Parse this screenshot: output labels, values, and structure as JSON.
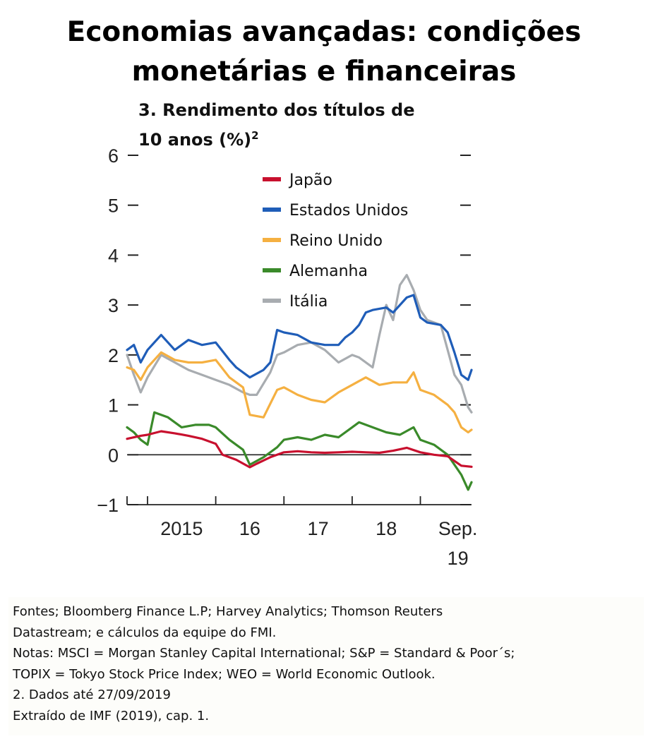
{
  "title": {
    "line1": "Economias avançadas: condições",
    "line2": "monetárias e financeiras"
  },
  "subtitle": {
    "line1": "3. Rendimento dos títulos de",
    "line2": "10 anos (%)",
    "superscript": "2"
  },
  "notes": [
    "Fontes; Bloomberg Finance L.P; Harvey Analytics; Thomson Reuters",
    "Datastream; e cálculos da equipe do FMI.",
    "Notas: MSCI = Morgan Stanley Capital International; S&P = Standard & Poor´s;",
    "TOPIX = Tokyo Stock Price Index; WEO = World Economic Outlook.",
    "2. Dados até 27/09/2019",
    "Extraído de IMF (2019), cap. 1."
  ],
  "chart_data": {
    "type": "line",
    "ylim": [
      -1,
      6
    ],
    "yticks": [
      "−1",
      "0",
      "1",
      "2",
      "3",
      "4",
      "5",
      "6"
    ],
    "xlim": [
      2014.7,
      2019.75
    ],
    "xtick_labels": [
      {
        "label": "2015",
        "x": 2015.5
      },
      {
        "label": "16",
        "x": 2016.5
      },
      {
        "label": "17",
        "x": 2017.5
      },
      {
        "label": "18",
        "x": 2018.5
      },
      {
        "label": "Sep.",
        "label2": "19",
        "x": 2019.55
      }
    ],
    "x_boundaries": [
      2015,
      2016,
      2017,
      2018,
      2019
    ],
    "zero_line": true,
    "legend_position": "top-center",
    "series": [
      {
        "name": "Japão",
        "color": "#c8102e",
        "x": [
          2014.7,
          2014.9,
          2015.0,
          2015.2,
          2015.4,
          2015.6,
          2015.8,
          2016.0,
          2016.1,
          2016.3,
          2016.5,
          2016.6,
          2016.8,
          2017.0,
          2017.2,
          2017.4,
          2017.6,
          2017.8,
          2018.0,
          2018.2,
          2018.4,
          2018.6,
          2018.8,
          2019.0,
          2019.2,
          2019.4,
          2019.6,
          2019.75
        ],
        "values": [
          0.32,
          0.38,
          0.4,
          0.47,
          0.43,
          0.38,
          0.32,
          0.22,
          0.0,
          -0.1,
          -0.25,
          -0.18,
          -0.05,
          0.05,
          0.07,
          0.05,
          0.04,
          0.05,
          0.06,
          0.05,
          0.04,
          0.08,
          0.14,
          0.05,
          0.0,
          -0.03,
          -0.22,
          -0.24
        ]
      },
      {
        "name": "Estados Unidos",
        "color": "#1f5db8",
        "x": [
          2014.7,
          2014.8,
          2014.9,
          2015.0,
          2015.2,
          2015.4,
          2015.6,
          2015.8,
          2016.0,
          2016.2,
          2016.3,
          2016.5,
          2016.7,
          2016.8,
          2016.9,
          2017.0,
          2017.2,
          2017.4,
          2017.6,
          2017.8,
          2017.9,
          2018.0,
          2018.1,
          2018.2,
          2018.3,
          2018.5,
          2018.6,
          2018.8,
          2018.9,
          2019.0,
          2019.1,
          2019.3,
          2019.4,
          2019.5,
          2019.6,
          2019.7,
          2019.75
        ],
        "values": [
          2.1,
          2.2,
          1.85,
          2.1,
          2.4,
          2.1,
          2.3,
          2.2,
          2.25,
          1.9,
          1.75,
          1.55,
          1.7,
          1.85,
          2.5,
          2.45,
          2.4,
          2.25,
          2.2,
          2.2,
          2.35,
          2.45,
          2.6,
          2.85,
          2.9,
          2.95,
          2.85,
          3.15,
          3.2,
          2.75,
          2.65,
          2.6,
          2.45,
          2.05,
          1.6,
          1.5,
          1.7
        ]
      },
      {
        "name": "Reino Unido",
        "color": "#f5b041",
        "x": [
          2014.7,
          2014.8,
          2014.9,
          2015.0,
          2015.2,
          2015.4,
          2015.6,
          2015.8,
          2016.0,
          2016.2,
          2016.4,
          2016.5,
          2016.7,
          2016.9,
          2017.0,
          2017.2,
          2017.4,
          2017.6,
          2017.8,
          2018.0,
          2018.2,
          2018.4,
          2018.6,
          2018.8,
          2018.9,
          2019.0,
          2019.2,
          2019.4,
          2019.5,
          2019.6,
          2019.7,
          2019.75
        ],
        "values": [
          1.75,
          1.7,
          1.5,
          1.75,
          2.05,
          1.9,
          1.85,
          1.85,
          1.9,
          1.55,
          1.35,
          0.8,
          0.75,
          1.3,
          1.35,
          1.2,
          1.1,
          1.05,
          1.25,
          1.4,
          1.55,
          1.4,
          1.45,
          1.45,
          1.65,
          1.3,
          1.2,
          1.0,
          0.85,
          0.55,
          0.45,
          0.5
        ]
      },
      {
        "name": "Alemanha",
        "color": "#3a8a2a",
        "x": [
          2014.7,
          2014.8,
          2014.9,
          2015.0,
          2015.1,
          2015.3,
          2015.5,
          2015.7,
          2015.9,
          2016.0,
          2016.2,
          2016.4,
          2016.5,
          2016.7,
          2016.9,
          2017.0,
          2017.2,
          2017.4,
          2017.6,
          2017.8,
          2018.0,
          2018.1,
          2018.3,
          2018.5,
          2018.7,
          2018.9,
          2019.0,
          2019.2,
          2019.4,
          2019.6,
          2019.7,
          2019.75
        ],
        "values": [
          0.55,
          0.45,
          0.3,
          0.2,
          0.85,
          0.75,
          0.55,
          0.6,
          0.6,
          0.55,
          0.3,
          0.1,
          -0.2,
          -0.05,
          0.15,
          0.3,
          0.35,
          0.3,
          0.4,
          0.35,
          0.55,
          0.65,
          0.55,
          0.45,
          0.4,
          0.55,
          0.3,
          0.2,
          0.0,
          -0.4,
          -0.7,
          -0.55
        ]
      },
      {
        "name": "Itália",
        "color": "#a8acb0",
        "x": [
          2014.7,
          2014.8,
          2014.9,
          2015.0,
          2015.2,
          2015.4,
          2015.6,
          2015.8,
          2016.0,
          2016.2,
          2016.4,
          2016.5,
          2016.6,
          2016.8,
          2016.9,
          2017.0,
          2017.2,
          2017.4,
          2017.6,
          2017.8,
          2018.0,
          2018.1,
          2018.3,
          2018.4,
          2018.5,
          2018.6,
          2018.7,
          2018.8,
          2018.9,
          2019.0,
          2019.1,
          2019.3,
          2019.4,
          2019.5,
          2019.6,
          2019.7,
          2019.75
        ],
        "values": [
          2.0,
          1.6,
          1.25,
          1.55,
          2.0,
          1.85,
          1.7,
          1.6,
          1.5,
          1.4,
          1.25,
          1.2,
          1.2,
          1.65,
          2.0,
          2.05,
          2.2,
          2.25,
          2.1,
          1.85,
          2.0,
          1.95,
          1.75,
          2.4,
          3.0,
          2.7,
          3.4,
          3.6,
          3.3,
          2.9,
          2.7,
          2.6,
          2.1,
          1.6,
          1.4,
          0.95,
          0.85
        ]
      }
    ]
  }
}
